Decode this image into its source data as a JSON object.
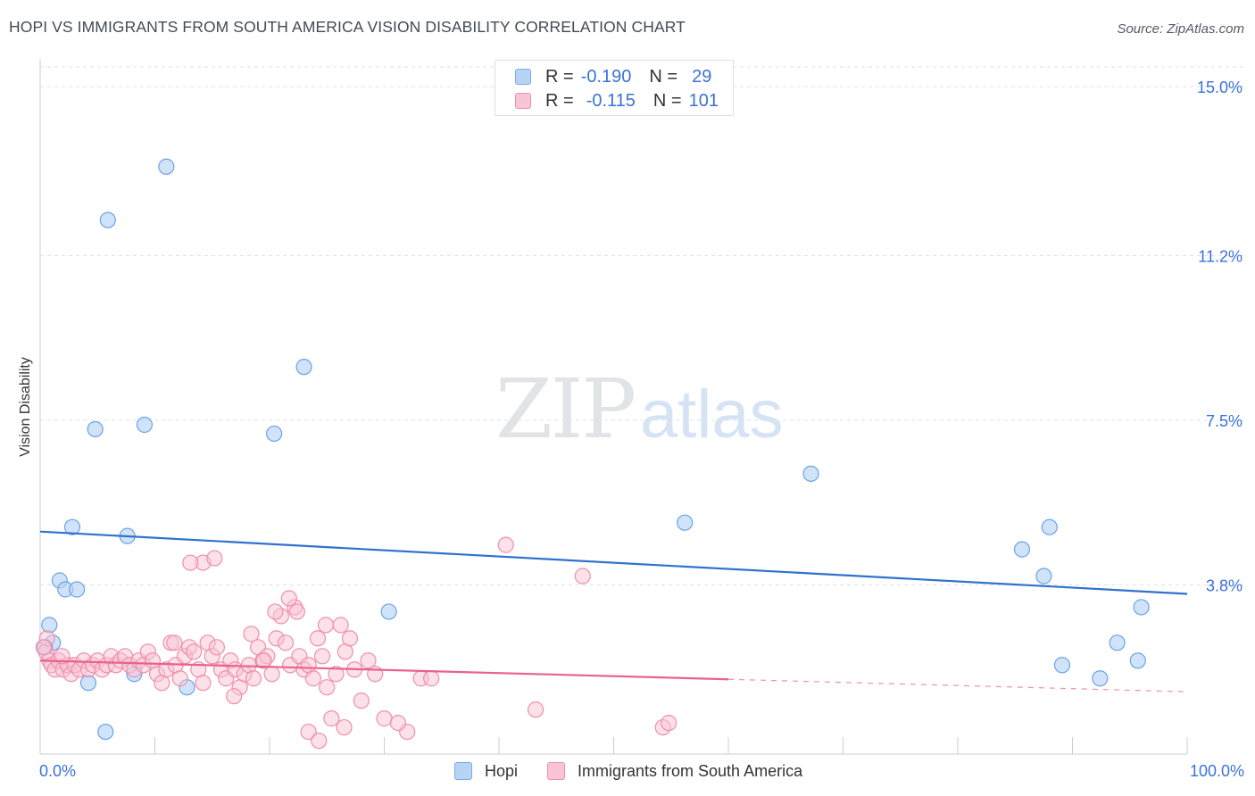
{
  "header": {
    "title": "HOPI VS IMMIGRANTS FROM SOUTH AMERICA VISION DISABILITY CORRELATION CHART",
    "source": "Source: ZipAtlas.com"
  },
  "watermark": {
    "zip": "ZIP",
    "atlas": "atlas"
  },
  "legend": {
    "rows": [
      {
        "r_label": "R =",
        "r_value": "-0.190",
        "n_label": "N =",
        "n_value": "29",
        "color": "#b8d4f5",
        "border": "#7aaae8"
      },
      {
        "r_label": "R =",
        "r_value": "-0.115",
        "n_label": "N =",
        "n_value": "101",
        "color": "#f9c4d4",
        "border": "#ee8fae"
      }
    ]
  },
  "bottom_legend": [
    {
      "label": "Hopi",
      "color": "#b8d4f5",
      "border": "#7aaae8"
    },
    {
      "label": "Immigrants from South America",
      "color": "#f9c4d4",
      "border": "#ee8fae"
    }
  ],
  "chart_data": {
    "type": "scatter",
    "title": "HOPI VS IMMIGRANTS FROM SOUTH AMERICA VISION DISABILITY CORRELATION CHART",
    "xlabel": "",
    "ylabel": "Vision Disability",
    "xlim": [
      0,
      100
    ],
    "ylim": [
      0,
      15.5
    ],
    "x_tick_labels": [
      "0.0%",
      "100.0%"
    ],
    "y_ticks": [
      3.8,
      7.5,
      11.2,
      15.0
    ],
    "y_tick_labels": [
      "3.8%",
      "7.5%",
      "11.2%",
      "15.0%"
    ],
    "grid": true,
    "legend_position": "top-center",
    "series": [
      {
        "name": "Hopi",
        "color": "#6aa3e8",
        "fill": "#b8d4f5",
        "trend": {
          "x": [
            0,
            100
          ],
          "y": [
            5.0,
            3.6
          ],
          "color": "#2f72cc",
          "solid_to": 100
        },
        "points": [
          [
            11.0,
            13.2
          ],
          [
            5.9,
            12.0
          ],
          [
            23.0,
            8.7
          ],
          [
            4.8,
            7.3
          ],
          [
            9.1,
            7.4
          ],
          [
            20.4,
            7.2
          ],
          [
            67.2,
            6.3
          ],
          [
            2.8,
            5.1
          ],
          [
            7.6,
            4.9
          ],
          [
            56.2,
            5.2
          ],
          [
            88.0,
            5.1
          ],
          [
            85.6,
            4.6
          ],
          [
            87.5,
            4.0
          ],
          [
            1.7,
            3.9
          ],
          [
            2.2,
            3.7
          ],
          [
            3.2,
            3.7
          ],
          [
            30.4,
            3.2
          ],
          [
            96.0,
            3.3
          ],
          [
            0.8,
            2.9
          ],
          [
            1.1,
            2.5
          ],
          [
            93.9,
            2.5
          ],
          [
            0.4,
            2.4
          ],
          [
            95.7,
            2.1
          ],
          [
            89.1,
            2.0
          ],
          [
            92.4,
            1.7
          ],
          [
            4.2,
            1.6
          ],
          [
            8.2,
            1.8
          ],
          [
            12.8,
            1.5
          ],
          [
            5.7,
            0.5
          ]
        ]
      },
      {
        "name": "Immigrants from South America",
        "color": "#ee8fae",
        "fill": "#f9c4d4",
        "trend": {
          "x": [
            0,
            100
          ],
          "y": [
            2.1,
            1.4
          ],
          "color": "#e8628d",
          "solid_to": 60
        },
        "points": [
          [
            0.5,
            2.3
          ],
          [
            0.8,
            2.1
          ],
          [
            1.0,
            2.0
          ],
          [
            1.3,
            1.9
          ],
          [
            1.6,
            2.1
          ],
          [
            2.0,
            1.9
          ],
          [
            2.4,
            2.0
          ],
          [
            2.7,
            1.8
          ],
          [
            3.0,
            2.0
          ],
          [
            3.4,
            1.9
          ],
          [
            3.8,
            2.1
          ],
          [
            4.2,
            1.9
          ],
          [
            4.6,
            2.0
          ],
          [
            5.0,
            2.1
          ],
          [
            5.4,
            1.9
          ],
          [
            5.8,
            2.0
          ],
          [
            6.2,
            2.2
          ],
          [
            6.6,
            2.0
          ],
          [
            7.0,
            2.1
          ],
          [
            7.4,
            2.2
          ],
          [
            7.8,
            2.0
          ],
          [
            8.2,
            1.9
          ],
          [
            8.6,
            2.1
          ],
          [
            9.0,
            2.0
          ],
          [
            9.4,
            2.3
          ],
          [
            9.8,
            2.1
          ],
          [
            10.2,
            1.8
          ],
          [
            10.6,
            1.6
          ],
          [
            11.0,
            1.9
          ],
          [
            11.4,
            2.5
          ],
          [
            11.8,
            2.0
          ],
          [
            12.2,
            1.7
          ],
          [
            12.6,
            2.2
          ],
          [
            13.0,
            2.4
          ],
          [
            13.4,
            2.3
          ],
          [
            13.8,
            1.9
          ],
          [
            14.2,
            1.6
          ],
          [
            14.6,
            2.5
          ],
          [
            15.0,
            2.2
          ],
          [
            15.4,
            2.4
          ],
          [
            15.8,
            1.9
          ],
          [
            16.2,
            1.7
          ],
          [
            16.6,
            2.1
          ],
          [
            17.0,
            1.9
          ],
          [
            17.4,
            1.5
          ],
          [
            17.8,
            1.8
          ],
          [
            18.2,
            2.0
          ],
          [
            18.6,
            1.7
          ],
          [
            19.0,
            2.4
          ],
          [
            19.4,
            2.1
          ],
          [
            19.8,
            2.2
          ],
          [
            20.2,
            1.8
          ],
          [
            20.6,
            2.6
          ],
          [
            21.0,
            3.1
          ],
          [
            21.4,
            2.5
          ],
          [
            21.8,
            2.0
          ],
          [
            22.2,
            3.3
          ],
          [
            22.6,
            2.2
          ],
          [
            23.0,
            1.9
          ],
          [
            23.4,
            2.0
          ],
          [
            23.8,
            1.7
          ],
          [
            24.2,
            2.6
          ],
          [
            24.6,
            2.2
          ],
          [
            25.0,
            1.5
          ],
          [
            25.4,
            0.8
          ],
          [
            25.8,
            1.8
          ],
          [
            26.2,
            2.9
          ],
          [
            26.6,
            2.3
          ],
          [
            27.0,
            2.6
          ],
          [
            27.4,
            1.9
          ],
          [
            28.0,
            1.2
          ],
          [
            28.6,
            2.1
          ],
          [
            29.2,
            1.8
          ],
          [
            14.2,
            4.3
          ],
          [
            15.2,
            4.4
          ],
          [
            13.1,
            4.3
          ],
          [
            21.7,
            3.5
          ],
          [
            22.4,
            3.2
          ],
          [
            20.5,
            3.2
          ],
          [
            24.9,
            2.9
          ],
          [
            11.7,
            2.5
          ],
          [
            23.4,
            0.5
          ],
          [
            24.3,
            0.3
          ],
          [
            26.5,
            0.6
          ],
          [
            30.0,
            0.8
          ],
          [
            32.0,
            0.5
          ],
          [
            31.2,
            0.7
          ],
          [
            33.2,
            1.7
          ],
          [
            34.1,
            1.7
          ],
          [
            40.6,
            4.7
          ],
          [
            47.3,
            4.0
          ],
          [
            43.2,
            1.0
          ],
          [
            54.3,
            0.6
          ],
          [
            54.8,
            0.7
          ],
          [
            0.6,
            2.6
          ],
          [
            0.3,
            2.4
          ],
          [
            1.9,
            2.2
          ],
          [
            19.5,
            2.1
          ],
          [
            18.4,
            2.7
          ],
          [
            16.9,
            1.3
          ]
        ]
      }
    ]
  }
}
